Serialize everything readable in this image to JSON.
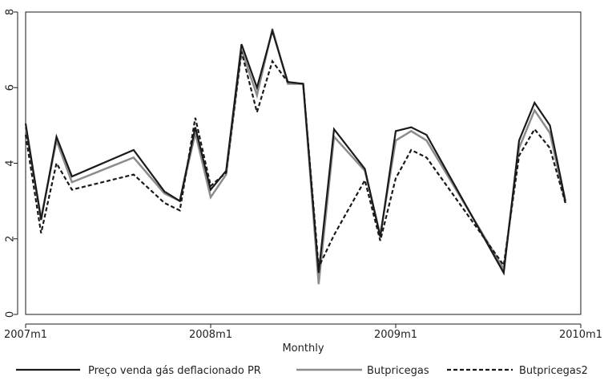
{
  "chart_data": {
    "type": "line",
    "title": "",
    "xlabel": "Monthly",
    "ylabel": "",
    "xlim": [
      "2007m1",
      "2010m1"
    ],
    "ylim": [
      0,
      8
    ],
    "grid": false,
    "legend_position": "bottom",
    "x_tick_labels": [
      "2007m1",
      "2008m1",
      "2009m1",
      "2010m1"
    ],
    "y_tick_labels": [
      "0",
      "2",
      "4",
      "6",
      "8"
    ],
    "x": [
      "2007-01",
      "2007-02",
      "2007-03",
      "2007-04",
      "2007-08",
      "2007-10",
      "2007-11",
      "2007-12",
      "2008-01",
      "2008-02",
      "2008-03",
      "2008-04",
      "2008-05",
      "2008-06",
      "2008-07",
      "2008-08",
      "2008-09",
      "2008-11",
      "2008-12",
      "2009-01",
      "2009-02",
      "2009-03",
      "2009-08",
      "2009-09",
      "2009-10",
      "2009-11",
      "2009-12"
    ],
    "series": [
      {
        "name": "Preço venda gás deflacionado PR",
        "color": "#1a1a1a",
        "dash": "solid",
        "values": [
          5.05,
          2.5,
          4.7,
          3.65,
          4.35,
          3.25,
          3.0,
          4.95,
          3.3,
          3.8,
          7.15,
          6.0,
          7.5,
          6.15,
          6.1,
          1.1,
          4.9,
          3.85,
          2.05,
          4.85,
          4.95,
          4.75,
          1.1,
          4.6,
          5.6,
          5.0,
          3.0
        ]
      },
      {
        "name": "Butpricegas",
        "color": "#8c8c8c",
        "dash": "solid",
        "values": [
          4.95,
          2.55,
          4.6,
          3.5,
          4.15,
          3.2,
          3.0,
          4.8,
          3.1,
          3.7,
          7.0,
          5.8,
          7.55,
          6.1,
          6.1,
          0.8,
          4.7,
          3.8,
          2.1,
          4.6,
          4.85,
          4.6,
          1.2,
          4.4,
          5.4,
          4.8,
          2.95
        ]
      },
      {
        "name": "Butpricegas2",
        "color": "#1a1a1a",
        "dash": "dashed",
        "values": [
          4.75,
          2.15,
          4.0,
          3.3,
          3.7,
          2.95,
          2.75,
          5.2,
          3.4,
          3.75,
          6.95,
          5.35,
          6.7,
          6.15,
          6.1,
          1.25,
          2.1,
          3.55,
          1.95,
          3.6,
          4.35,
          4.15,
          1.3,
          4.2,
          4.9,
          4.4,
          2.95
        ]
      }
    ]
  }
}
